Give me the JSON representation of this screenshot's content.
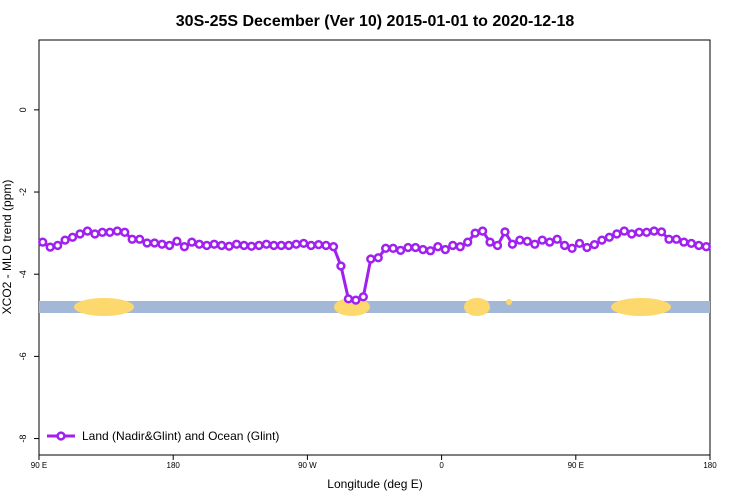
{
  "chart_data": {
    "type": "line",
    "title": "30S-25S December (Ver 10)   2015-01-01 to 2020-12-18",
    "xlabel": "Longitude (deg E)",
    "ylabel": "XCO2 - MLO trend (ppm)",
    "x": [
      92.5,
      97.5,
      102.5,
      107.5,
      112.5,
      117.5,
      122.5,
      127.5,
      132.5,
      137.5,
      142.5,
      147.5,
      152.5,
      157.5,
      162.5,
      167.5,
      172.5,
      177.5,
      182.5,
      187.5,
      192.5,
      197.5,
      202.5,
      207.5,
      212.5,
      217.5,
      222.5,
      227.5,
      232.5,
      237.5,
      242.5,
      247.5,
      252.5,
      257.5,
      262.5,
      267.5,
      272.5,
      277.5,
      282.5,
      287.5,
      292.5,
      297.5,
      302.5,
      307.5,
      312.5,
      317.5,
      322.5,
      327.5,
      332.5,
      337.5,
      342.5,
      347.5,
      352.5,
      357.5,
      362.5,
      367.5,
      372.5,
      377.5,
      382.5,
      387.5,
      392.5,
      397.5,
      402.5,
      407.5,
      412.5,
      417.5,
      422.5,
      427.5,
      432.5,
      437.5,
      442.5,
      447.5,
      452.5,
      457.5,
      462.5,
      467.5,
      472.5,
      477.5,
      482.5,
      487.5,
      492.5,
      497.5,
      502.5,
      507.5,
      512.5,
      517.5,
      522.5,
      527.5,
      532.5,
      537.5
    ],
    "series": [
      {
        "name": "Land (Nadir&Glint) and Ocean (Glint)",
        "color": "#a020f0",
        "values": [
          -3.22,
          -3.34,
          -3.3,
          -3.17,
          -3.1,
          -3.02,
          -2.95,
          -3.02,
          -2.98,
          -2.98,
          -2.95,
          -2.98,
          -3.15,
          -3.15,
          -3.24,
          -3.24,
          -3.27,
          -3.3,
          -3.2,
          -3.33,
          -3.22,
          -3.27,
          -3.3,
          -3.27,
          -3.3,
          -3.32,
          -3.27,
          -3.3,
          -3.32,
          -3.3,
          -3.27,
          -3.3,
          -3.3,
          -3.3,
          -3.27,
          -3.25,
          -3.3,
          -3.28,
          -3.3,
          -3.33,
          -3.8,
          -4.6,
          -4.63,
          -4.55,
          -3.63,
          -3.6,
          -3.37,
          -3.37,
          -3.42,
          -3.35,
          -3.35,
          -3.4,
          -3.43,
          -3.33,
          -3.4,
          -3.3,
          -3.33,
          -3.22,
          -3.0,
          -2.95,
          -3.22,
          -3.3,
          -2.97,
          -3.27,
          -3.17,
          -3.2,
          -3.27,
          -3.17,
          -3.22,
          -3.15,
          -3.3,
          -3.37,
          -3.25,
          -3.35,
          -3.28,
          -3.17,
          -3.1,
          -3.02,
          -2.95,
          -3.02,
          -2.98,
          -2.98,
          -2.95,
          -2.97,
          -3.15,
          -3.15,
          -3.22,
          -3.25,
          -3.3,
          -3.33
        ]
      }
    ],
    "xlim": [
      90,
      540
    ],
    "xticks": [
      {
        "value": 90,
        "label": "90 E"
      },
      180,
      {
        "value": 270,
        "label": "90 W"
      },
      {
        "value": 360,
        "label": "0"
      },
      {
        "value": 450,
        "label": "90 E"
      },
      {
        "value": 540,
        "label": "180"
      }
    ],
    "ylim": [
      -8.4,
      1.7
    ],
    "yticks": [
      0,
      -2,
      -4,
      -6,
      -8
    ],
    "legend": "bottom-left"
  }
}
